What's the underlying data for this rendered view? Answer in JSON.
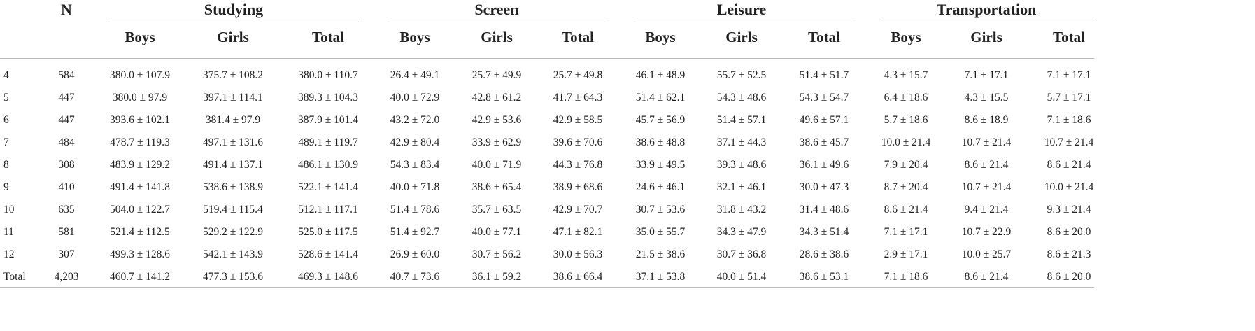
{
  "table": {
    "header": {
      "n_label": "N",
      "groups": [
        "Studying",
        "Screen",
        "Leisure",
        "Transportation"
      ],
      "subheaders": [
        "Boys",
        "Girls",
        "Total"
      ]
    },
    "rows": [
      {
        "label": "4",
        "n": "584",
        "cells": [
          "380.0 ± 107.9",
          "375.7 ± 108.2",
          "380.0 ± 110.7",
          "26.4 ± 49.1",
          "25.7 ± 49.9",
          "25.7 ± 49.8",
          "46.1 ± 48.9",
          "55.7 ± 52.5",
          "51.4 ± 51.7",
          "4.3 ± 15.7",
          "7.1 ± 17.1",
          "7.1 ± 17.1"
        ]
      },
      {
        "label": "5",
        "n": "447",
        "cells": [
          "380.0 ± 97.9",
          "397.1 ± 114.1",
          "389.3 ± 104.3",
          "40.0 ± 72.9",
          "42.8 ± 61.2",
          "41.7 ± 64.3",
          "51.4 ± 62.1",
          "54.3 ± 48.6",
          "54.3 ± 54.7",
          "6.4 ± 18.6",
          "4.3 ± 15.5",
          "5.7 ± 17.1"
        ]
      },
      {
        "label": "6",
        "n": "447",
        "cells": [
          "393.6 ± 102.1",
          "381.4 ± 97.9",
          "387.9 ± 101.4",
          "43.2 ± 72.0",
          "42.9 ± 53.6",
          "42.9 ± 58.5",
          "45.7 ± 56.9",
          "51.4 ± 57.1",
          "49.6 ± 57.1",
          "5.7 ± 18.6",
          "8.6 ± 18.9",
          "7.1 ± 18.6"
        ]
      },
      {
        "label": "7",
        "n": "484",
        "cells": [
          "478.7 ± 119.3",
          "497.1 ± 131.6",
          "489.1 ± 119.7",
          "42.9 ± 80.4",
          "33.9 ± 62.9",
          "39.6 ± 70.6",
          "38.6 ± 48.8",
          "37.1 ± 44.3",
          "38.6 ± 45.7",
          "10.0 ± 21.4",
          "10.7 ± 21.4",
          "10.7 ± 21.4"
        ]
      },
      {
        "label": "8",
        "n": "308",
        "cells": [
          "483.9 ± 129.2",
          "491.4 ± 137.1",
          "486.1 ± 130.9",
          "54.3 ± 83.4",
          "40.0 ± 71.9",
          "44.3 ± 76.8",
          "33.9 ± 49.5",
          "39.3 ± 48.6",
          "36.1 ± 49.6",
          "7.9 ± 20.4",
          "8.6 ± 21.4",
          "8.6 ± 21.4"
        ]
      },
      {
        "label": "9",
        "n": "410",
        "cells": [
          "491.4 ± 141.8",
          "538.6 ± 138.9",
          "522.1 ± 141.4",
          "40.0 ± 71.8",
          "38.6 ± 65.4",
          "38.9 ± 68.6",
          "24.6 ± 46.1",
          "32.1 ± 46.1",
          "30.0 ± 47.3",
          "8.7 ± 20.4",
          "10.7 ± 21.4",
          "10.0 ± 21.4"
        ]
      },
      {
        "label": "10",
        "n": "635",
        "cells": [
          "504.0 ± 122.7",
          "519.4 ± 115.4",
          "512.1 ± 117.1",
          "51.4 ± 78.6",
          "35.7 ± 63.5",
          "42.9 ± 70.7",
          "30.7 ± 53.6",
          "31.8 ± 43.2",
          "31.4 ± 48.6",
          "8.6 ± 21.4",
          "9.4 ± 21.4",
          "9.3 ± 21.4"
        ]
      },
      {
        "label": "11",
        "n": "581",
        "cells": [
          "521.4 ± 112.5",
          "529.2 ± 122.9",
          "525.0 ± 117.5",
          "51.4 ± 92.7",
          "40.0 ± 77.1",
          "47.1 ± 82.1",
          "35.0 ± 55.7",
          "34.3 ± 47.9",
          "34.3 ± 51.4",
          "7.1 ± 17.1",
          "10.7 ± 22.9",
          "8.6 ± 20.0"
        ]
      },
      {
        "label": "12",
        "n": "307",
        "cells": [
          "499.3 ± 128.6",
          "542.1 ± 143.9",
          "528.6 ± 141.4",
          "26.9 ± 60.0",
          "30.7 ± 56.2",
          "30.0 ± 56.3",
          "21.5 ± 38.6",
          "30.7 ± 36.8",
          "28.6 ± 38.6",
          "2.9 ± 17.1",
          "10.0 ± 25.7",
          "8.6 ± 21.3"
        ]
      },
      {
        "label": "Total",
        "n": "4,203",
        "cells": [
          "460.7 ± 141.2",
          "477.3 ± 153.6",
          "469.3 ± 148.6",
          "40.7 ± 73.6",
          "36.1 ± 59.2",
          "38.6 ± 66.4",
          "37.1 ± 53.8",
          "40.0 ± 51.4",
          "38.6 ± 53.1",
          "7.1 ± 18.6",
          "8.6 ± 21.4",
          "8.6 ± 20.0"
        ]
      }
    ]
  }
}
